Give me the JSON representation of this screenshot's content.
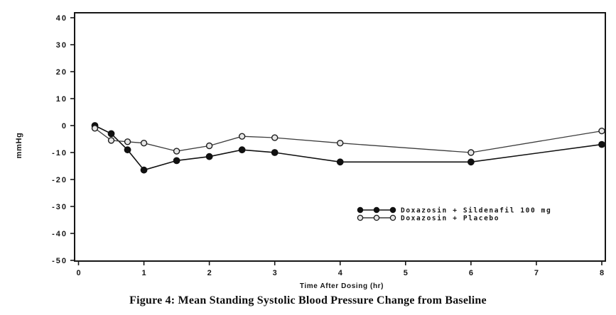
{
  "figure": {
    "caption": "Figure 4: Mean Standing Systolic Blood Pressure Change from Baseline"
  },
  "chart_data": {
    "type": "line",
    "title": "",
    "xlabel": "Time After Dosing (hr)",
    "ylabel": "mmHg",
    "x": [
      0.25,
      0.5,
      0.75,
      1,
      1.5,
      2,
      2.5,
      3,
      4,
      6,
      8
    ],
    "series": [
      {
        "name": "Doxazosin + Sildenafil 100 mg",
        "marker": "filled-circle",
        "values": [
          0,
          -3,
          -9,
          -16.5,
          -13,
          -11.5,
          -9,
          -10,
          -13.5,
          -13.5,
          -7
        ]
      },
      {
        "name": "Doxazosin + Placebo",
        "marker": "open-circle",
        "values": [
          -1,
          -5.5,
          -6,
          -6.5,
          -9.5,
          -7.5,
          -4,
          -4.5,
          -6.5,
          -10,
          -2
        ]
      }
    ],
    "xlim": [
      0,
      8
    ],
    "ylim": [
      -50,
      40
    ],
    "x_ticks": [
      0,
      1,
      2,
      3,
      4,
      5,
      6,
      7,
      8
    ],
    "y_ticks": [
      40,
      30,
      20,
      10,
      0,
      -10,
      -20,
      -30,
      -40,
      -50
    ],
    "grid": false,
    "legend_position": "inside-lower-right",
    "legend_labels": [
      "Doxazosin + Sildenafil 100 mg",
      "Doxazosin + Placebo"
    ]
  },
  "colors": {
    "ink": "#161616",
    "line_primary": "#111111",
    "line_secondary": "#3c3c3c",
    "open_marker_fill": "#e6e6e6",
    "background": "#ffffff"
  }
}
